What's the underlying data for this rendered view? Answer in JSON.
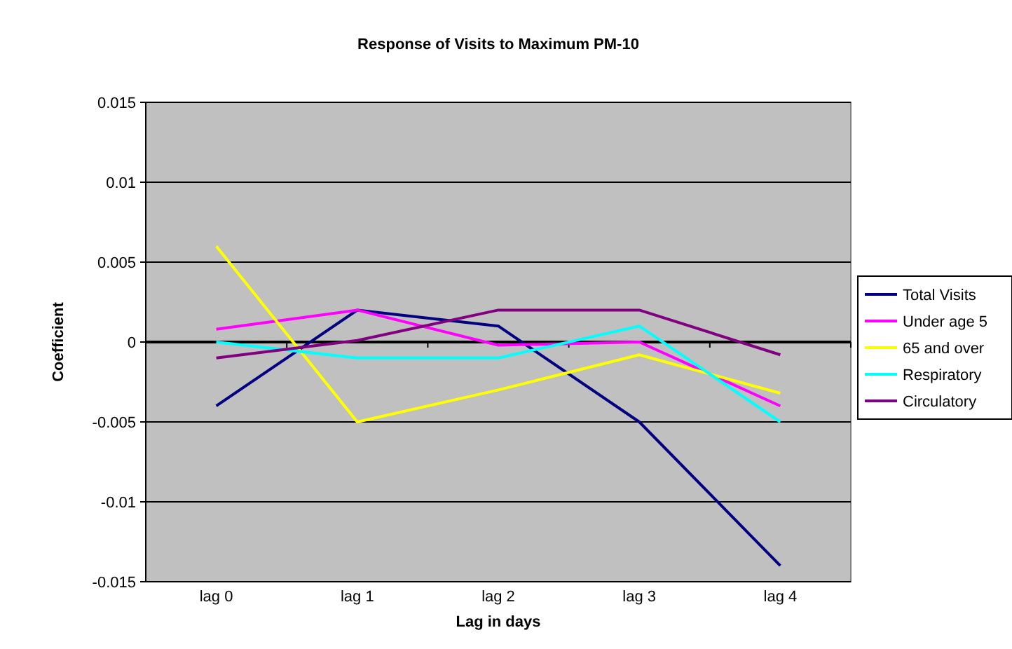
{
  "chart_data": {
    "type": "line",
    "title": "Response of Visits to Maximum PM-10",
    "xlabel": "Lag in days",
    "ylabel": "Coefficient",
    "categories": [
      "lag 0",
      "lag 1",
      "lag 2",
      "lag 3",
      "lag 4"
    ],
    "series": [
      {
        "name": "Total Visits",
        "color": "#000080",
        "values": [
          -0.004,
          0.002,
          0.001,
          -0.005,
          -0.014
        ]
      },
      {
        "name": "Under age 5",
        "color": "#ff00ff",
        "values": [
          0.0008,
          0.002,
          -0.0002,
          0,
          -0.004
        ]
      },
      {
        "name": "65 and over",
        "color": "#ffff00",
        "values": [
          0.006,
          -0.005,
          -0.003,
          -0.0008,
          -0.0032
        ]
      },
      {
        "name": "Respiratory",
        "color": "#00ffff",
        "values": [
          0,
          -0.001,
          -0.001,
          0.001,
          -0.005
        ]
      },
      {
        "name": "Circulatory",
        "color": "#800080",
        "values": [
          -0.001,
          0.0001,
          0.002,
          0.002,
          -0.0008
        ]
      }
    ],
    "ylim": [
      -0.015,
      0.015
    ],
    "yticks": [
      -0.015,
      -0.01,
      -0.005,
      0,
      0.005,
      0.01,
      0.015
    ],
    "grid": "y",
    "legend": "right",
    "marker": "none"
  }
}
